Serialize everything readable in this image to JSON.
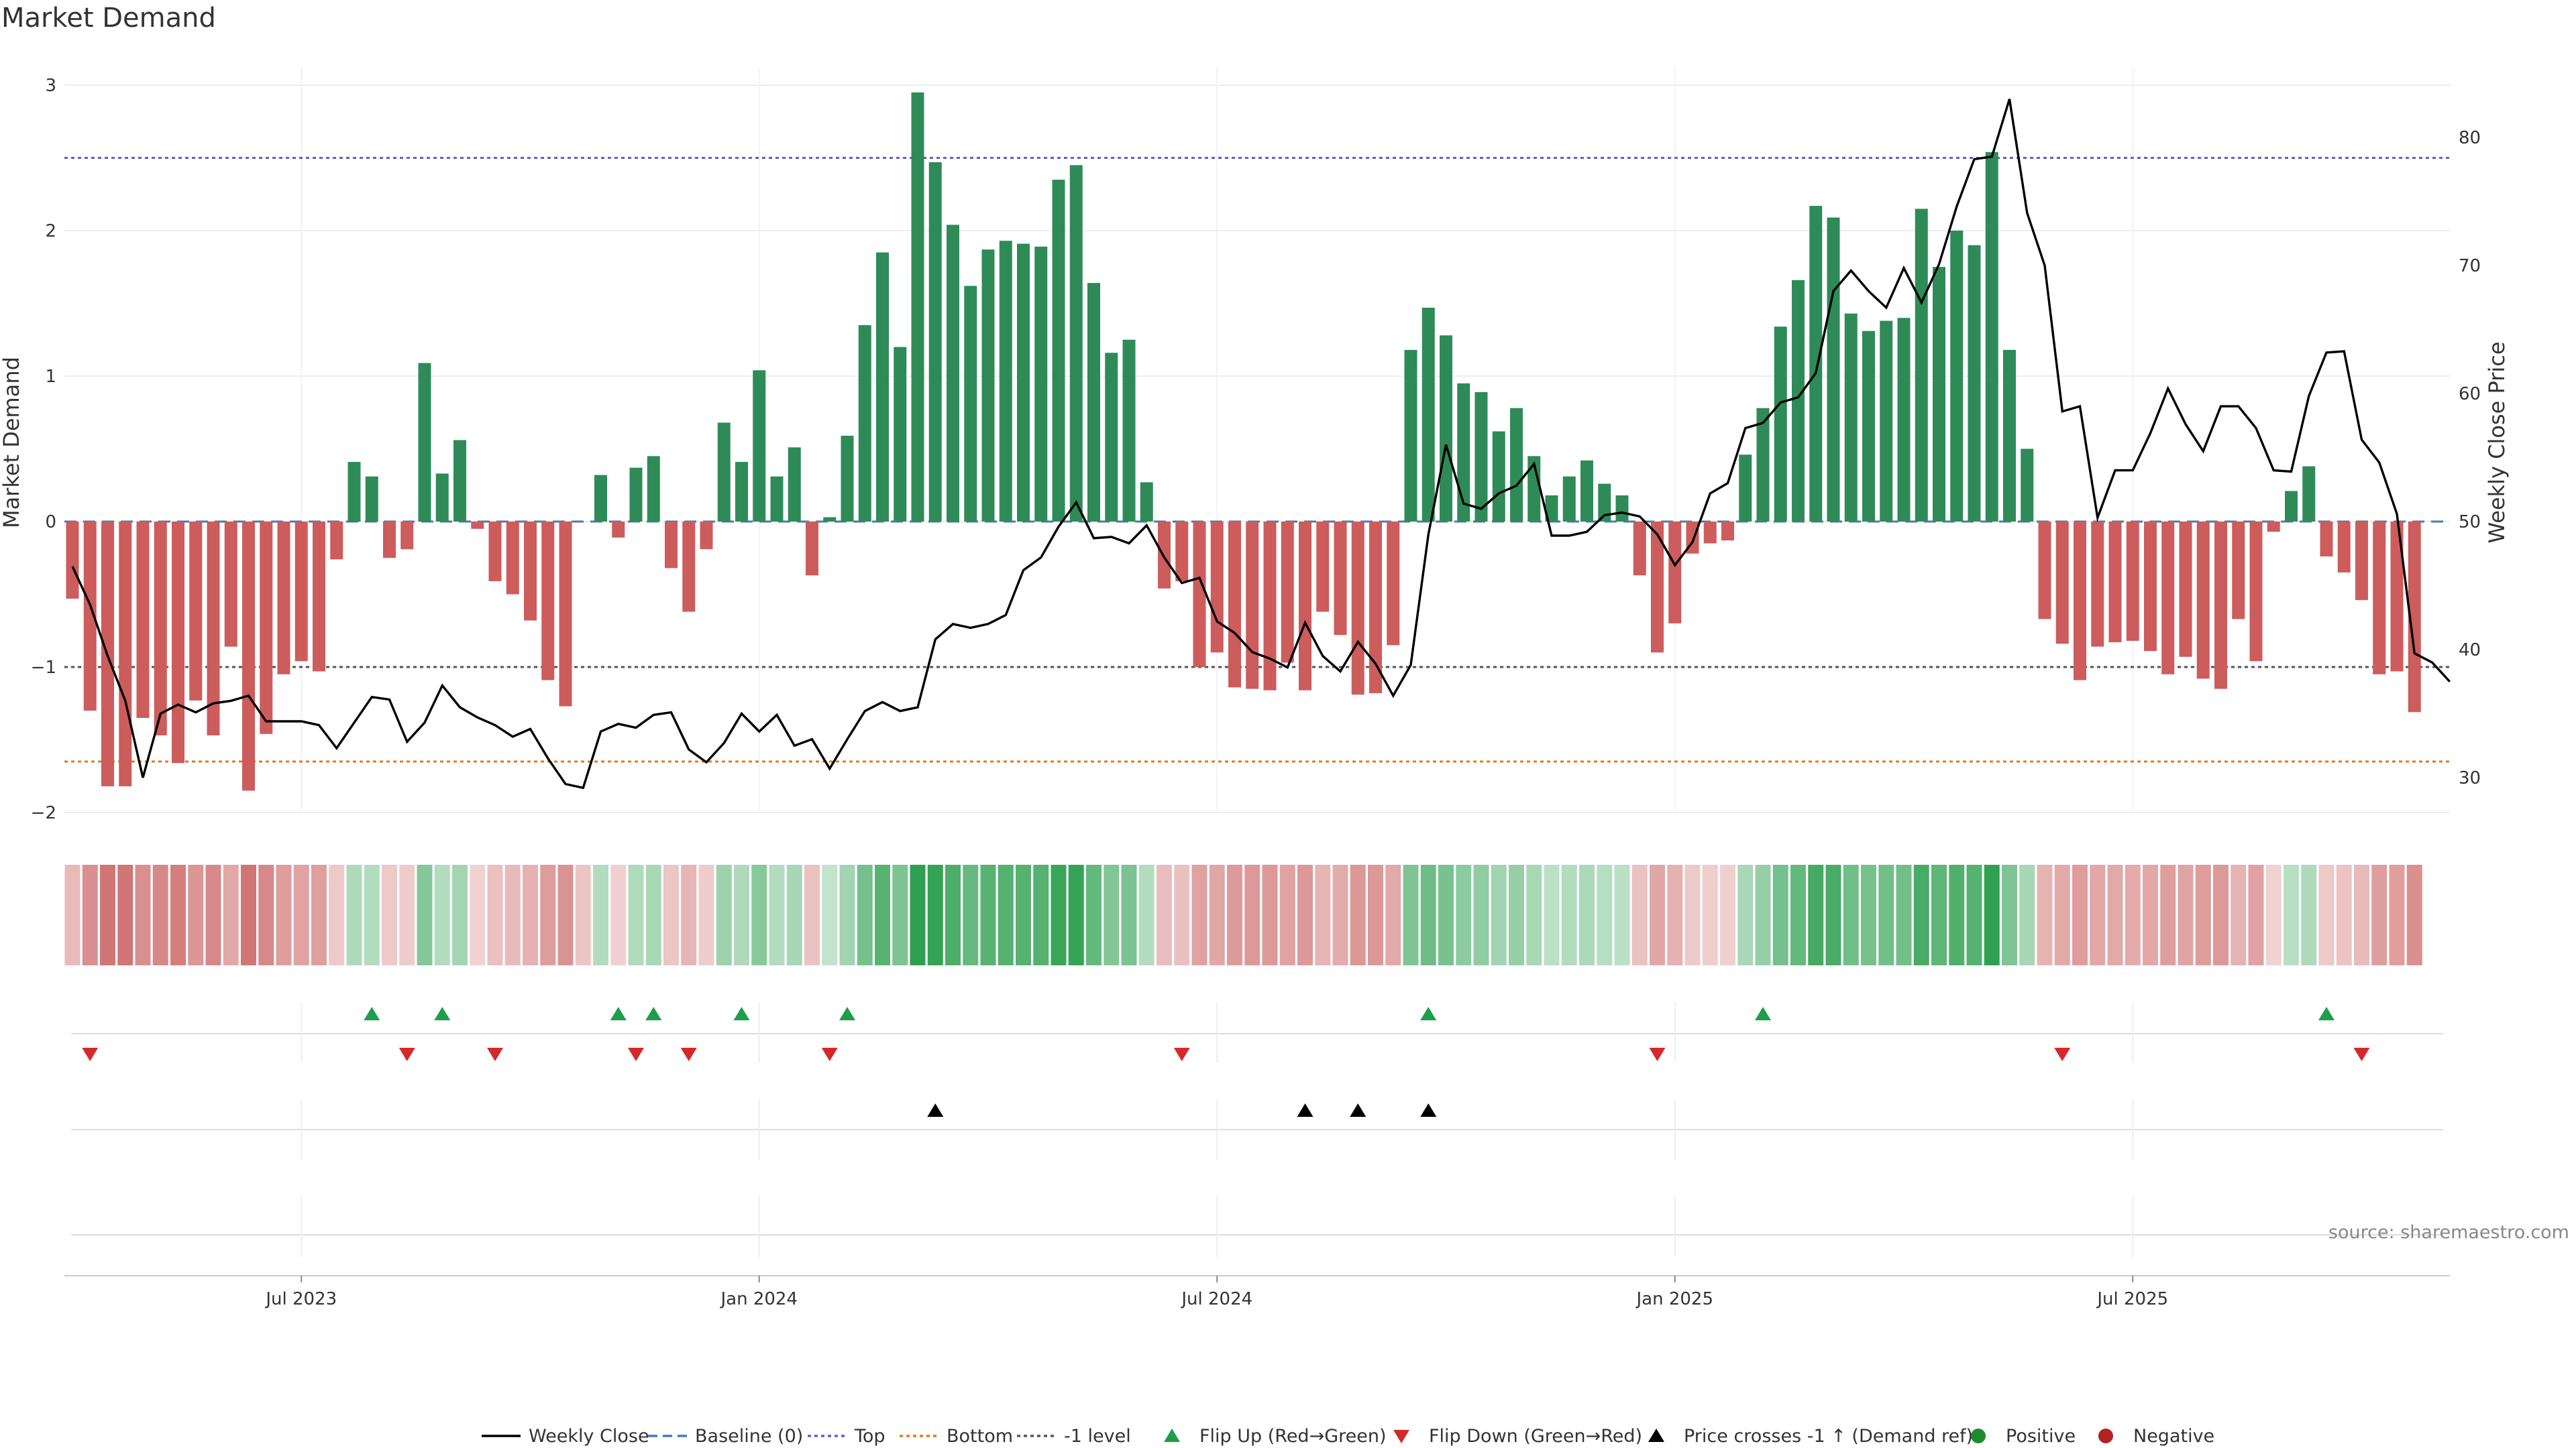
{
  "title": "Market Demand",
  "source": "source: sharemaestro.com",
  "colors": {
    "positive": "#2e8b57",
    "negative": "#cd5c5c",
    "price": "#000000",
    "top": "#6a5acd",
    "bottom": "#e07b1a",
    "minus1": "#555555",
    "flip_up": "#1e9e4a",
    "flip_down": "#d62828",
    "cross": "#000000"
  },
  "chart_data": {
    "type": "bar",
    "title": "Market Demand",
    "ylabel": "Market Demand",
    "y2label": "Weekly Close Price",
    "ylim": [
      -2.3,
      3.2
    ],
    "y2lim": [
      27,
      85.5
    ],
    "yticks": [
      "−2",
      "−1",
      "0",
      "1",
      "2",
      "3"
    ],
    "y2ticks": [
      "30",
      "40",
      "50",
      "60",
      "70",
      "80"
    ],
    "xticks": [
      {
        "label": "Jul 2023",
        "index": 13
      },
      {
        "label": "Jan 2024",
        "index": 39
      },
      {
        "label": "Jul 2024",
        "index": 65
      },
      {
        "label": "Jan 2025",
        "index": 91
      },
      {
        "label": "Jul 2025",
        "index": 117
      }
    ],
    "levels": {
      "baseline": 0,
      "top": 2.5,
      "bottom": -1.65,
      "minus1": -1
    },
    "demand": [
      -0.53,
      -1.3,
      -1.82,
      -1.82,
      -1.35,
      -1.47,
      -1.66,
      -1.23,
      -1.47,
      -0.86,
      -1.85,
      -1.46,
      -1.05,
      -0.96,
      -1.03,
      -0.26,
      0.41,
      0.31,
      -0.25,
      -0.19,
      1.09,
      0.33,
      0.56,
      -0.05,
      -0.41,
      -0.5,
      -0.68,
      -1.09,
      -1.27,
      0,
      0.32,
      -0.11,
      0.37,
      0.45,
      -0.32,
      -0.62,
      -0.19,
      0.68,
      0.41,
      1.04,
      0.31,
      0.51,
      -0.37,
      0.03,
      0.59,
      1.35,
      1.85,
      1.2,
      2.95,
      2.47,
      2.04,
      1.62,
      1.87,
      1.93,
      1.91,
      1.89,
      2.35,
      2.45,
      1.64,
      1.16,
      1.25,
      0.27,
      -0.46,
      -0.41,
      -1.0,
      -0.9,
      -1.14,
      -1.15,
      -1.16,
      -0.97,
      -1.16,
      -0.62,
      -0.78,
      -1.19,
      -1.18,
      -0.85,
      1.18,
      1.47,
      1.28,
      0.95,
      0.89,
      0.62,
      0.78,
      0.45,
      0.18,
      0.31,
      0.42,
      0.26,
      0.18,
      -0.37,
      -0.9,
      -0.7,
      -0.22,
      -0.15,
      -0.13,
      0.46,
      0.78,
      1.34,
      1.66,
      2.17,
      2.09,
      1.43,
      1.31,
      1.38,
      1.4,
      2.15,
      1.75,
      2.0,
      1.9,
      2.54,
      1.18,
      0.5,
      -0.67,
      -0.84,
      -1.09,
      -0.86,
      -0.83,
      -0.82,
      -0.89,
      -1.05,
      -0.93,
      -1.08,
      -1.15,
      -0.67,
      -0.96,
      -0.07,
      0.21,
      0.38,
      -0.24,
      -0.35,
      -0.54,
      -1.05,
      -1.03,
      -1.31
    ],
    "price": [
      46.5,
      43.5,
      39.5,
      36.0,
      30.0,
      35.0,
      35.7,
      35.1,
      35.8,
      36.0,
      36.4,
      34.4,
      34.4,
      34.4,
      34.1,
      32.3,
      34.3,
      36.3,
      36.1,
      32.8,
      34.3,
      37.2,
      35.5,
      34.7,
      34.1,
      33.2,
      33.8,
      31.5,
      29.5,
      29.2,
      33.6,
      34.2,
      33.9,
      34.9,
      35.1,
      32.2,
      31.2,
      32.7,
      35.0,
      33.6,
      34.9,
      32.5,
      33.0,
      30.7,
      33.0,
      35.2,
      35.9,
      35.2,
      35.5,
      40.8,
      42.0,
      41.7,
      42.0,
      42.7,
      46.2,
      47.2,
      49.6,
      51.5,
      48.7,
      48.8,
      48.3,
      49.7,
      47.2,
      45.2,
      45.6,
      42.2,
      41.3,
      39.8,
      39.3,
      38.6,
      42.1,
      39.5,
      38.3,
      40.6,
      38.9,
      36.4,
      38.8,
      49.0,
      56.0,
      51.4,
      51.0,
      52.2,
      52.8,
      54.5,
      48.9,
      48.9,
      49.2,
      50.5,
      50.7,
      50.4,
      49.0,
      46.6,
      48.4,
      52.2,
      53.0,
      57.3,
      57.7,
      59.3,
      59.7,
      61.6,
      68.0,
      69.6,
      68.0,
      66.7,
      69.8,
      67.1,
      70.1,
      74.6,
      78.3,
      78.5,
      83.0,
      74.1,
      70.0,
      58.6,
      59.0,
      50.3,
      54.0,
      54.0,
      56.9,
      60.4,
      57.6,
      55.5,
      59.0,
      59.0,
      57.3,
      54.0,
      53.9,
      59.8,
      63.2,
      63.3,
      56.4,
      54.6,
      50.6,
      39.7,
      39.0,
      37.5
    ],
    "flip_up": [
      17,
      21,
      31,
      33,
      38,
      44,
      77,
      96,
      128
    ],
    "flip_down": [
      1,
      19,
      24,
      32,
      35,
      43,
      63,
      90,
      113,
      130
    ],
    "price_cross": [
      49,
      70,
      73,
      77
    ],
    "legend": [
      "Weekly Close",
      "Baseline (0)",
      "Top",
      "Bottom",
      "-1 level",
      "Flip Up (Red→Green)",
      "Flip Down (Green→Red)",
      "Price crosses -1 ↑ (Demand ref)",
      "Positive",
      "Negative"
    ]
  }
}
